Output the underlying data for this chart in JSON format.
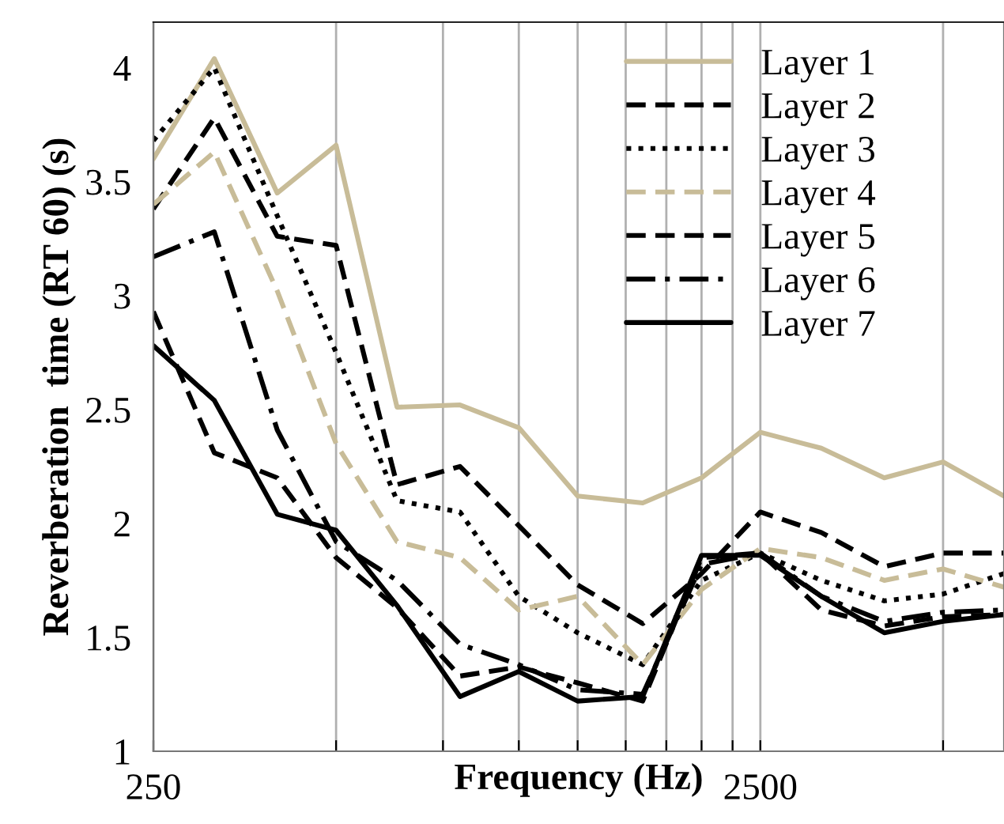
{
  "chart_data": {
    "type": "line",
    "xlabel": "Frequency (Hz)",
    "ylabel": "Reverberation  time (RT 60) (s)",
    "x": [
      250,
      315,
      400,
      500,
      630,
      800,
      1000,
      1250,
      1600,
      2000,
      2500,
      3150,
      4000,
      5000,
      6300
    ],
    "series": [
      {
        "name": "Layer 1",
        "color": "#c8bc98",
        "line_style": "solid",
        "values": [
          3.6,
          4.04,
          3.45,
          3.66,
          2.51,
          2.52,
          2.42,
          2.12,
          2.09,
          2.2,
          2.4,
          2.33,
          2.2,
          2.27,
          2.12
        ]
      },
      {
        "name": "Layer 2",
        "color": "#000000",
        "line_style": "dashed",
        "values": [
          3.38,
          3.78,
          3.26,
          3.22,
          2.17,
          2.25,
          1.99,
          1.73,
          1.56,
          1.78,
          2.05,
          1.96,
          1.81,
          1.87,
          1.87
        ]
      },
      {
        "name": "Layer 3",
        "color": "#000000",
        "line_style": "dotted",
        "values": [
          3.68,
          4.0,
          3.35,
          2.75,
          2.1,
          2.05,
          1.68,
          1.52,
          1.38,
          1.75,
          1.87,
          1.75,
          1.66,
          1.69,
          1.78
        ]
      },
      {
        "name": "Layer 4",
        "color": "#c8bc98",
        "line_style": "dashed",
        "values": [
          3.4,
          3.63,
          3.02,
          2.35,
          1.92,
          1.85,
          1.62,
          1.68,
          1.38,
          1.71,
          1.89,
          1.85,
          1.75,
          1.8,
          1.72
        ]
      },
      {
        "name": "Layer 5",
        "color": "#000000",
        "line_style": "dashed",
        "values": [
          2.93,
          2.31,
          2.2,
          1.85,
          1.63,
          1.33,
          1.37,
          1.3,
          1.22,
          1.85,
          1.87,
          1.62,
          1.55,
          1.59,
          1.6
        ]
      },
      {
        "name": "Layer 6",
        "color": "#000000",
        "line_style": "dashdot",
        "values": [
          3.17,
          3.28,
          2.41,
          1.92,
          1.75,
          1.47,
          1.38,
          1.27,
          1.25,
          1.82,
          1.87,
          1.68,
          1.57,
          1.61,
          1.62
        ]
      },
      {
        "name": "Layer 7",
        "color": "#000000",
        "line_style": "solid",
        "values": [
          2.78,
          2.54,
          2.04,
          1.97,
          1.64,
          1.24,
          1.35,
          1.22,
          1.24,
          1.86,
          1.86,
          1.68,
          1.52,
          1.57,
          1.6
        ]
      }
    ],
    "log": "x",
    "xlim": [
      250,
      6300
    ],
    "xticks": [
      250,
      {
        "value": 500,
        "label": null
      },
      {
        "value": 750,
        "label": null
      },
      {
        "value": 1000,
        "label": null
      },
      {
        "value": 1250,
        "label": null
      },
      {
        "value": 1500,
        "label": null
      },
      {
        "value": 1750,
        "label": null
      },
      {
        "value": 2000,
        "label": null
      },
      {
        "value": 2250,
        "label": null
      },
      2500,
      {
        "value": 5000,
        "label": null
      }
    ],
    "ylim": [
      1,
      4.2
    ],
    "yticks": [
      1,
      1.5,
      2,
      2.5,
      3,
      3.5,
      4
    ],
    "grid": "x",
    "legend": "top right"
  }
}
